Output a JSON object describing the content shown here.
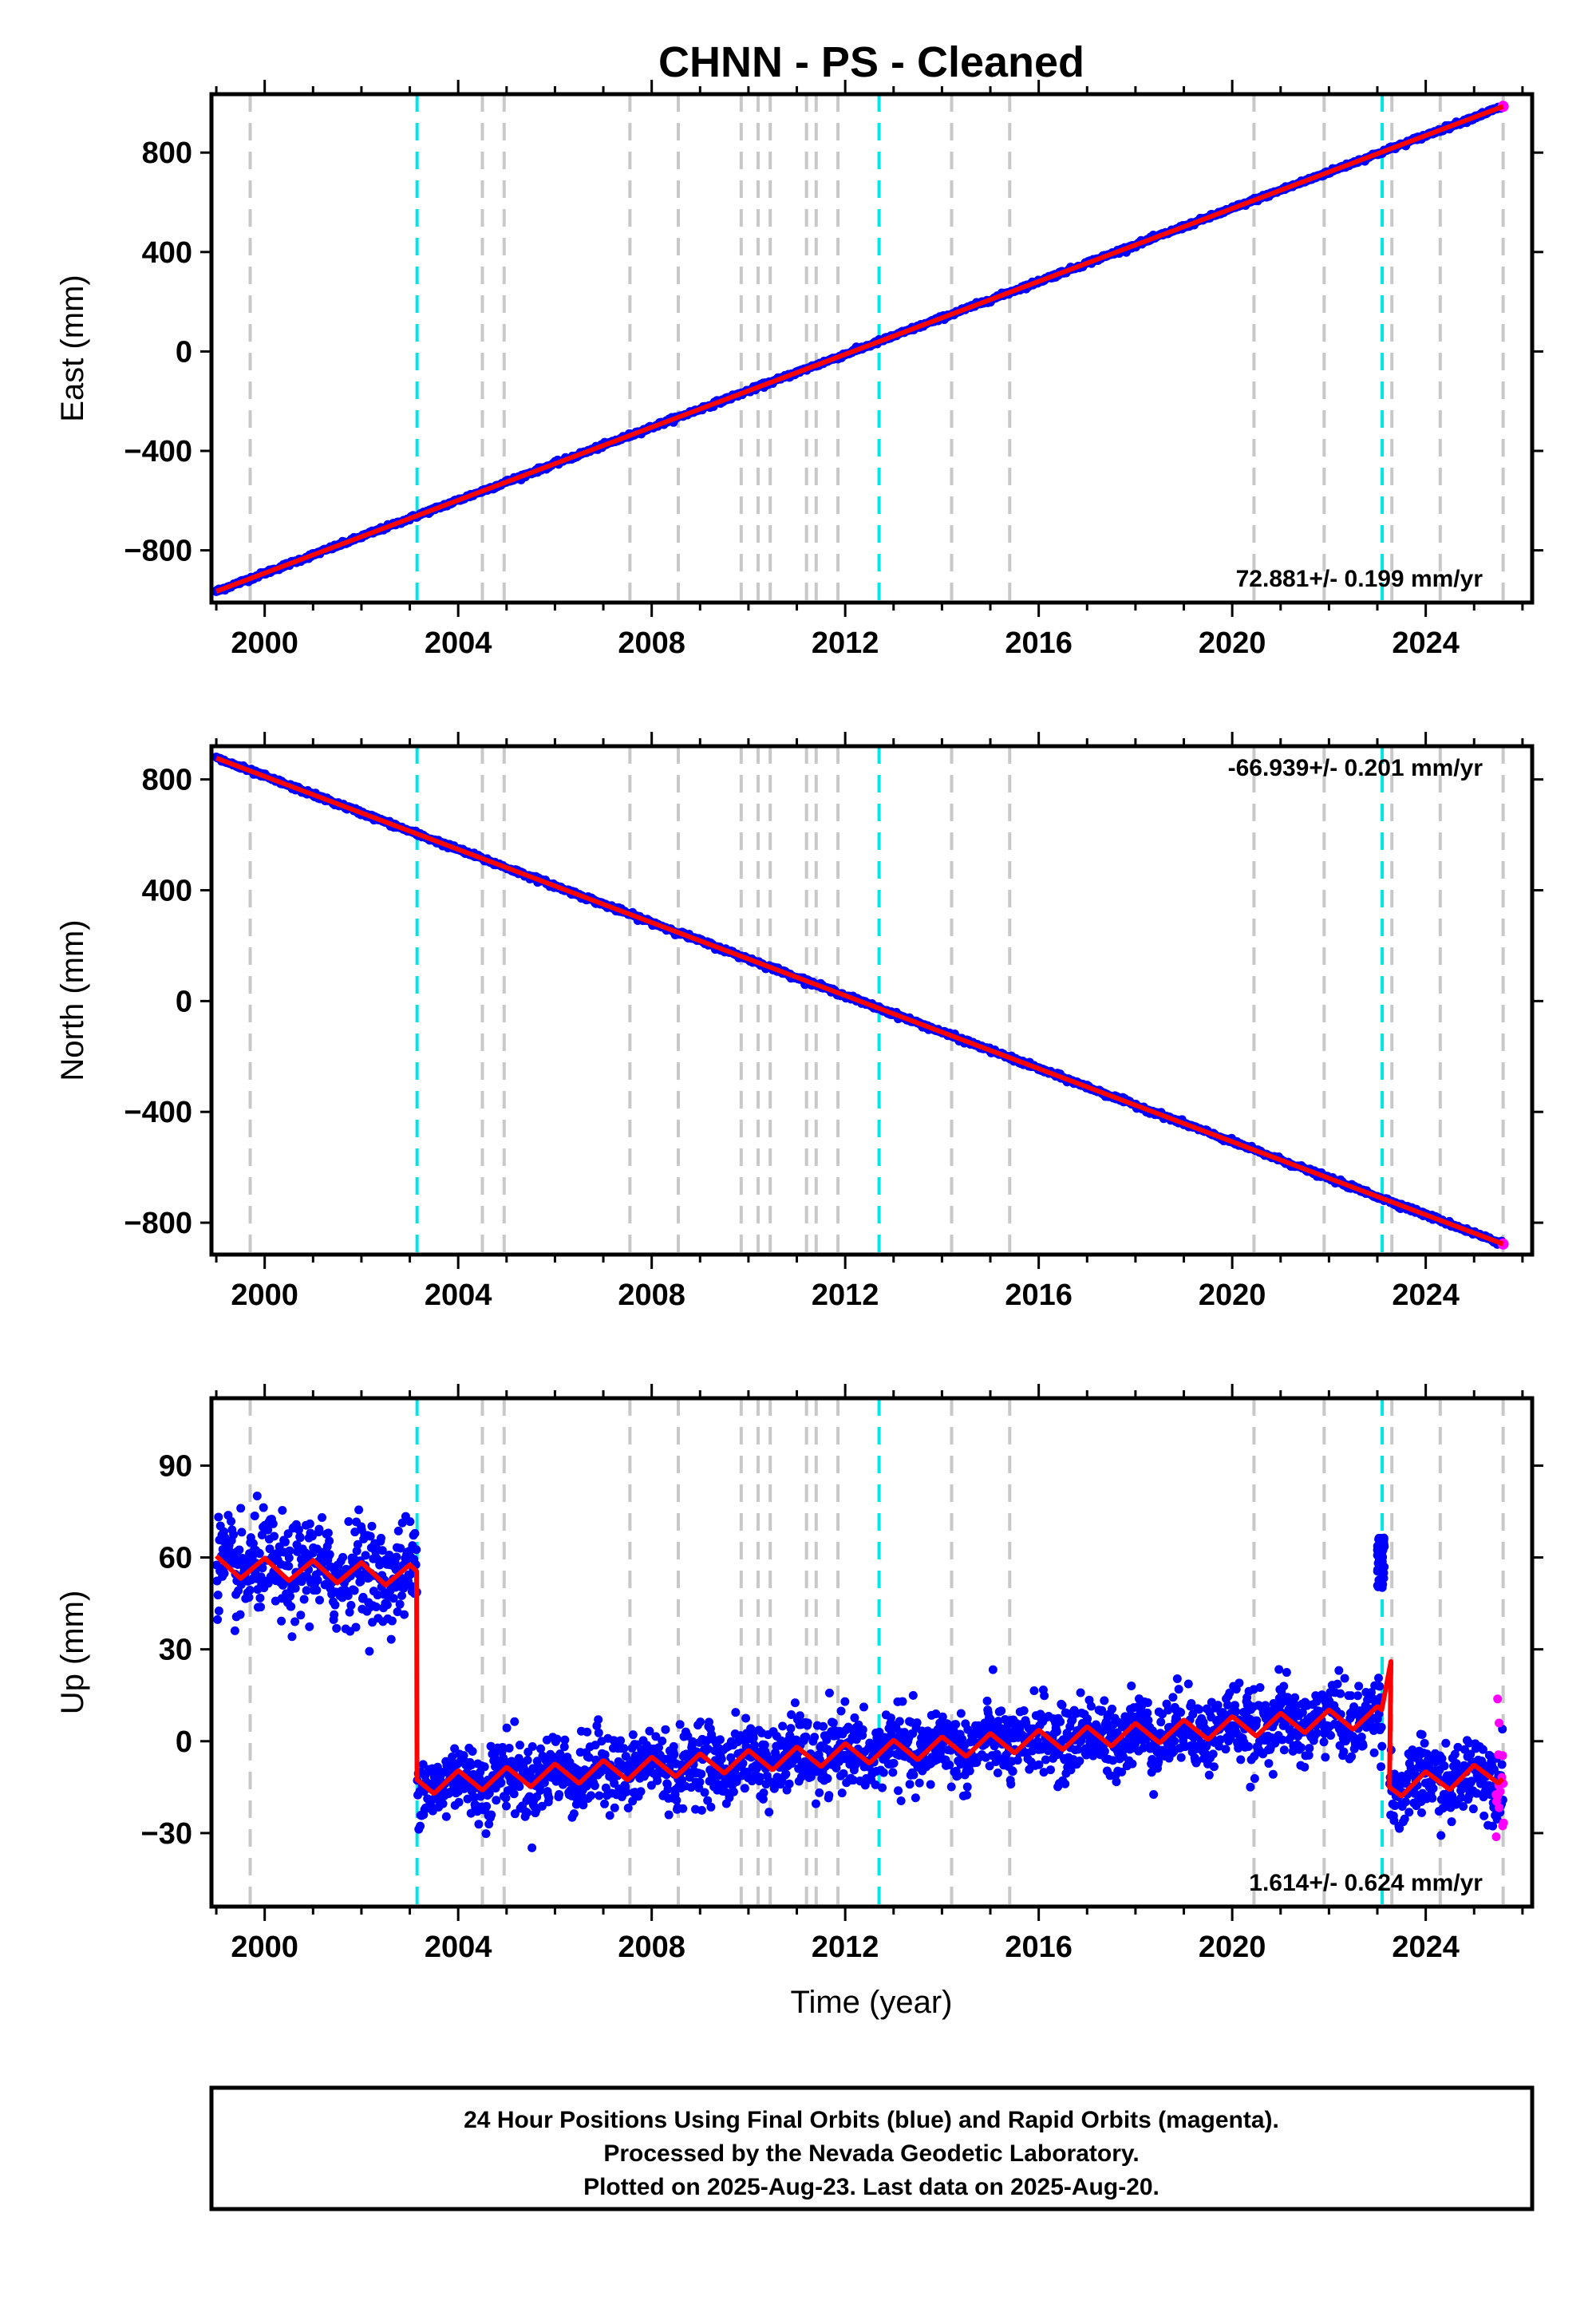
{
  "chart_data": {
    "type": "scatter",
    "title": "CHNN  - PS - Cleaned",
    "xlabel": "Time (year)",
    "xlim": [
      1998.9,
      2026.2
    ],
    "xticks": [
      2000,
      2004,
      2008,
      2012,
      2016,
      2020,
      2024
    ],
    "legend": "",
    "series_colors": {
      "final_orbits": "#0000ff",
      "rapid_orbits": "#ff00ff",
      "model_fit": "#ff0000"
    },
    "grid": false,
    "event_lines": {
      "gray_color": "#c8c8c8",
      "cyan_color": "#00e5e5",
      "gray_years": [
        1999.7,
        2004.5,
        2004.95,
        2007.55,
        2008.55,
        2009.85,
        2010.2,
        2010.45,
        2011.2,
        2011.4,
        2011.85,
        2014.2,
        2015.4,
        2020.45,
        2021.9,
        2023.3,
        2024.3,
        2025.6
      ],
      "cyan_years": [
        2003.15,
        2012.7,
        2023.1
      ]
    },
    "panels": [
      {
        "name": "east",
        "ylabel": "East (mm)",
        "ylim": [
          -1010,
          1035
        ],
        "yticks": [
          -800,
          -400,
          0,
          400,
          800
        ],
        "ytick_labels": [
          "−800",
          "−400",
          "0",
          "400",
          "800"
        ],
        "rate": "72.881+/- 0.199 mm/yr",
        "trend": {
          "x": [
            1999.0,
            2025.6
          ],
          "y": [
            -965,
            986
          ]
        }
      },
      {
        "name": "north",
        "ylabel": "North (mm)",
        "ylim": [
          -915,
          920
        ],
        "yticks": [
          -800,
          -400,
          0,
          400,
          800
        ],
        "ytick_labels": [
          "−800",
          "−400",
          "0",
          "400",
          "800"
        ],
        "rate": "-66.939+/- 0.201 mm/yr",
        "trend": {
          "x": [
            1999.0,
            2025.6
          ],
          "y": [
            877,
            -877
          ]
        }
      },
      {
        "name": "up",
        "ylabel": "Up (mm)",
        "ylim": [
          -54,
          112
        ],
        "yticks": [
          -30,
          0,
          30,
          60,
          90
        ],
        "ytick_labels": [
          "−30",
          "0",
          "30",
          "60",
          "90"
        ],
        "rate": "1.614+/- 0.624 mm/yr",
        "segments": [
          {
            "x0": 1999.0,
            "x1": 2003.15,
            "level0": 57,
            "level1": 54
          },
          {
            "x0": 2003.15,
            "x1": 2023.1,
            "level0": -14,
            "level1": 8
          },
          {
            "x0": 2023.25,
            "x1": 2025.6,
            "level0": -15,
            "level1": -10
          }
        ],
        "spike": {
          "x": [
            2023.0,
            2023.15
          ],
          "y0": 50,
          "y1": 67
        }
      }
    ]
  },
  "footer": {
    "line1": "24 Hour Positions Using Final Orbits (blue) and Rapid Orbits (magenta).",
    "line2": "Processed by the Nevada Geodetic Laboratory.",
    "line3": "Plotted on 2025-Aug-23. Last data on 2025-Aug-20."
  }
}
